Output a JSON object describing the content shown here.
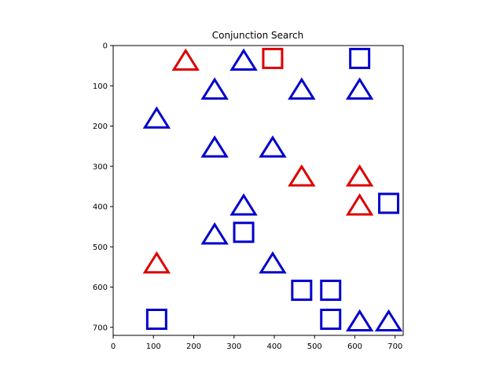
{
  "chart_data": {
    "type": "scatter",
    "title": "Conjunction Search",
    "xlabel": "",
    "ylabel": "",
    "xlim": [
      0,
      720
    ],
    "ylim": [
      720,
      0
    ],
    "y_inverted": true,
    "grid": false,
    "x_ticks": [
      0,
      100,
      200,
      300,
      400,
      500,
      600,
      700
    ],
    "y_ticks": [
      0,
      100,
      200,
      300,
      400,
      500,
      600,
      700
    ],
    "colors": {
      "red": "#dd0000",
      "blue": "#0000cc"
    },
    "points": [
      {
        "x": 180,
        "y": 36,
        "shape": "triangle",
        "color": "red"
      },
      {
        "x": 324,
        "y": 36,
        "shape": "triangle",
        "color": "blue"
      },
      {
        "x": 396,
        "y": 32,
        "shape": "square",
        "color": "red"
      },
      {
        "x": 612,
        "y": 32,
        "shape": "square",
        "color": "blue"
      },
      {
        "x": 252,
        "y": 108,
        "shape": "triangle",
        "color": "blue"
      },
      {
        "x": 468,
        "y": 108,
        "shape": "triangle",
        "color": "blue"
      },
      {
        "x": 612,
        "y": 108,
        "shape": "triangle",
        "color": "blue"
      },
      {
        "x": 108,
        "y": 180,
        "shape": "triangle",
        "color": "blue"
      },
      {
        "x": 252,
        "y": 252,
        "shape": "triangle",
        "color": "blue"
      },
      {
        "x": 396,
        "y": 252,
        "shape": "triangle",
        "color": "blue"
      },
      {
        "x": 468,
        "y": 324,
        "shape": "triangle",
        "color": "red"
      },
      {
        "x": 612,
        "y": 324,
        "shape": "triangle",
        "color": "red"
      },
      {
        "x": 324,
        "y": 396,
        "shape": "triangle",
        "color": "blue"
      },
      {
        "x": 612,
        "y": 396,
        "shape": "triangle",
        "color": "red"
      },
      {
        "x": 684,
        "y": 392,
        "shape": "square",
        "color": "blue"
      },
      {
        "x": 252,
        "y": 468,
        "shape": "triangle",
        "color": "blue"
      },
      {
        "x": 324,
        "y": 464,
        "shape": "square",
        "color": "blue"
      },
      {
        "x": 108,
        "y": 540,
        "shape": "triangle",
        "color": "red"
      },
      {
        "x": 396,
        "y": 540,
        "shape": "triangle",
        "color": "blue"
      },
      {
        "x": 468,
        "y": 608,
        "shape": "square",
        "color": "blue"
      },
      {
        "x": 540,
        "y": 608,
        "shape": "square",
        "color": "blue"
      },
      {
        "x": 108,
        "y": 680,
        "shape": "square",
        "color": "blue"
      },
      {
        "x": 540,
        "y": 680,
        "shape": "square",
        "color": "blue"
      },
      {
        "x": 612,
        "y": 684,
        "shape": "triangle",
        "color": "blue"
      },
      {
        "x": 684,
        "y": 684,
        "shape": "triangle",
        "color": "blue"
      }
    ]
  }
}
